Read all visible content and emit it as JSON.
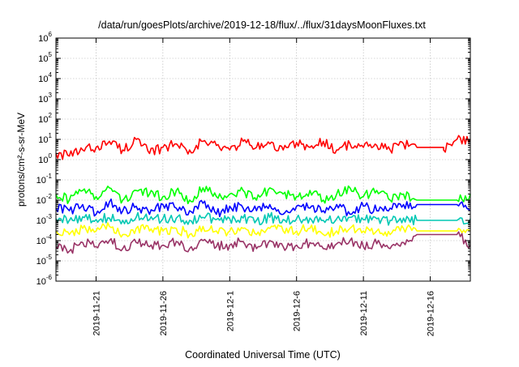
{
  "chart_data": {
    "type": "line",
    "title": "/data/run/goesPlots/archive/2019-12-18/flux/../flux/31daysMoonFluxes.txt",
    "xlabel": "Coordinated Universal Time (UTC)",
    "ylabel": "protons/cm²-s-sr-MeV",
    "y_scale": "log",
    "ylim": [
      1e-06,
      1000000.0
    ],
    "y_ticks": [
      {
        "value": 1e-06,
        "base": "10",
        "exp": "-6"
      },
      {
        "value": 1e-05,
        "base": "10",
        "exp": "-5"
      },
      {
        "value": 0.0001,
        "base": "10",
        "exp": "-4"
      },
      {
        "value": 0.001,
        "base": "10",
        "exp": "-3"
      },
      {
        "value": 0.01,
        "base": "10",
        "exp": "-2"
      },
      {
        "value": 0.1,
        "base": "10",
        "exp": "-1"
      },
      {
        "value": 1,
        "base": "10",
        "exp": "0"
      },
      {
        "value": 10,
        "base": "10",
        "exp": "1"
      },
      {
        "value": 100,
        "base": "10",
        "exp": "2"
      },
      {
        "value": 1000,
        "base": "10",
        "exp": "3"
      },
      {
        "value": 10000,
        "base": "10",
        "exp": "4"
      },
      {
        "value": 100000,
        "base": "10",
        "exp": "5"
      },
      {
        "value": 1000000,
        "base": "10",
        "exp": "6"
      }
    ],
    "x_range": [
      "2019-11-18",
      "2019-12-19"
    ],
    "x_ticks": [
      "2019-11-21",
      "2019-11-26",
      "2019-12-1",
      "2019-12-6",
      "2019-12-11",
      "2019-12-16"
    ],
    "grid": true,
    "series": [
      {
        "color": "#ff0000",
        "gap_from": "2019-12-15",
        "gap_to": "2019-12-17",
        "x": [
          "2019-11-18",
          "2019-11-19",
          "2019-11-20",
          "2019-11-21",
          "2019-11-22",
          "2019-11-23",
          "2019-11-24",
          "2019-11-25",
          "2019-11-26",
          "2019-11-27",
          "2019-11-28",
          "2019-11-29",
          "2019-11-30",
          "2019-12-01",
          "2019-12-02",
          "2019-12-03",
          "2019-12-04",
          "2019-12-05",
          "2019-12-06",
          "2019-12-07",
          "2019-12-08",
          "2019-12-09",
          "2019-12-10",
          "2019-12-11",
          "2019-12-12",
          "2019-12-13",
          "2019-12-14",
          "2019-12-15",
          "2019-12-17",
          "2019-12-18",
          "2019-12-19"
        ],
        "values": [
          2,
          1.5,
          3,
          4,
          8,
          3,
          10,
          2,
          4,
          6,
          3,
          8,
          5,
          3,
          8,
          4,
          6,
          3,
          7,
          4,
          8,
          3,
          6,
          4,
          5,
          3,
          6,
          4,
          3,
          10,
          10
        ]
      },
      {
        "color": "#00ff00",
        "gap_from": "2019-12-15",
        "gap_to": "2019-12-18",
        "x": [
          "2019-11-18",
          "2019-11-19",
          "2019-11-20",
          "2019-11-21",
          "2019-11-22",
          "2019-11-23",
          "2019-11-24",
          "2019-11-25",
          "2019-11-26",
          "2019-11-27",
          "2019-11-28",
          "2019-11-29",
          "2019-11-30",
          "2019-12-01",
          "2019-12-02",
          "2019-12-03",
          "2019-12-04",
          "2019-12-05",
          "2019-12-06",
          "2019-12-07",
          "2019-12-08",
          "2019-12-09",
          "2019-12-10",
          "2019-12-11",
          "2019-12-12",
          "2019-12-13",
          "2019-12-14",
          "2019-12-15",
          "2019-12-18",
          "2019-12-19"
        ],
        "values": [
          0.02,
          0.01,
          0.03,
          0.015,
          0.04,
          0.01,
          0.03,
          0.02,
          0.015,
          0.03,
          0.01,
          0.04,
          0.015,
          0.02,
          0.03,
          0.01,
          0.04,
          0.02,
          0.015,
          0.03,
          0.01,
          0.02,
          0.04,
          0.015,
          0.03,
          0.01,
          0.02,
          0.01,
          0.01,
          0.02
        ]
      },
      {
        "color": "#0000ff",
        "gap_from": "2019-12-15",
        "gap_to": "2019-12-18",
        "x": [
          "2019-11-18",
          "2019-11-19",
          "2019-11-20",
          "2019-11-21",
          "2019-11-22",
          "2019-11-23",
          "2019-11-24",
          "2019-11-25",
          "2019-11-26",
          "2019-11-27",
          "2019-11-28",
          "2019-11-29",
          "2019-11-30",
          "2019-12-01",
          "2019-12-02",
          "2019-12-03",
          "2019-12-04",
          "2019-12-05",
          "2019-12-06",
          "2019-12-07",
          "2019-12-08",
          "2019-12-09",
          "2019-12-10",
          "2019-12-11",
          "2019-12-12",
          "2019-12-13",
          "2019-12-14",
          "2019-12-15",
          "2019-12-18",
          "2019-12-19"
        ],
        "values": [
          0.004,
          0.003,
          0.006,
          0.002,
          0.008,
          0.003,
          0.005,
          0.002,
          0.006,
          0.004,
          0.003,
          0.007,
          0.002,
          0.005,
          0.004,
          0.003,
          0.006,
          0.002,
          0.005,
          0.004,
          0.003,
          0.006,
          0.002,
          0.005,
          0.003,
          0.004,
          0.006,
          0.006,
          0.006,
          0.003
        ]
      },
      {
        "color": "#00c8b4",
        "gap_from": "2019-12-15",
        "gap_to": "2019-12-18",
        "x": [
          "2019-11-18",
          "2019-11-19",
          "2019-11-20",
          "2019-11-21",
          "2019-11-22",
          "2019-11-23",
          "2019-11-24",
          "2019-11-25",
          "2019-11-26",
          "2019-11-27",
          "2019-11-28",
          "2019-11-29",
          "2019-11-30",
          "2019-12-01",
          "2019-12-02",
          "2019-12-03",
          "2019-12-04",
          "2019-12-05",
          "2019-12-06",
          "2019-12-07",
          "2019-12-08",
          "2019-12-09",
          "2019-12-10",
          "2019-12-11",
          "2019-12-12",
          "2019-12-13",
          "2019-12-14",
          "2019-12-15",
          "2019-12-18",
          "2019-12-19"
        ],
        "values": [
          0.0012,
          0.001,
          0.0015,
          0.0011,
          0.0013,
          0.001,
          0.0014,
          0.0011,
          0.0012,
          0.0013,
          0.001,
          0.0014,
          0.0011,
          0.0012,
          0.0013,
          0.001,
          0.0014,
          0.0011,
          0.0012,
          0.0013,
          0.001,
          0.0012,
          0.0014,
          0.0011,
          0.0012,
          0.001,
          0.0013,
          0.001,
          0.001,
          0.0012
        ]
      },
      {
        "color": "#ffff00",
        "gap_from": "2019-12-15",
        "gap_to": "2019-12-18",
        "x": [
          "2019-11-18",
          "2019-11-19",
          "2019-11-20",
          "2019-11-21",
          "2019-11-22",
          "2019-11-23",
          "2019-11-24",
          "2019-11-25",
          "2019-11-26",
          "2019-11-27",
          "2019-11-28",
          "2019-11-29",
          "2019-11-30",
          "2019-12-01",
          "2019-12-02",
          "2019-12-03",
          "2019-12-04",
          "2019-12-05",
          "2019-12-06",
          "2019-12-07",
          "2019-12-08",
          "2019-12-09",
          "2019-12-10",
          "2019-12-11",
          "2019-12-12",
          "2019-12-13",
          "2019-12-14",
          "2019-12-15",
          "2019-12-18",
          "2019-12-19"
        ],
        "values": [
          0.0003,
          0.0002,
          0.0004,
          0.0003,
          0.0005,
          0.0002,
          0.0004,
          0.0003,
          0.0003,
          0.0004,
          0.0002,
          0.0005,
          0.0003,
          0.0003,
          0.0004,
          0.0002,
          0.0004,
          0.0003,
          0.0003,
          0.0004,
          0.0002,
          0.0003,
          0.0004,
          0.0003,
          0.0003,
          0.0002,
          0.0004,
          0.0003,
          0.0003,
          0.0003
        ]
      },
      {
        "color": "#993366",
        "gap_from": "2019-12-15",
        "gap_to": "2019-12-18",
        "x": [
          "2019-11-18",
          "2019-11-19",
          "2019-11-20",
          "2019-11-21",
          "2019-11-22",
          "2019-11-23",
          "2019-11-24",
          "2019-11-25",
          "2019-11-26",
          "2019-11-27",
          "2019-11-28",
          "2019-11-29",
          "2019-11-30",
          "2019-12-01",
          "2019-12-02",
          "2019-12-03",
          "2019-12-04",
          "2019-12-05",
          "2019-12-06",
          "2019-12-07",
          "2019-12-08",
          "2019-12-09",
          "2019-12-10",
          "2019-12-11",
          "2019-12-12",
          "2019-12-13",
          "2019-12-14",
          "2019-12-15",
          "2019-12-18",
          "2019-12-19"
        ],
        "values": [
          5e-05,
          3e-05,
          8e-05,
          5e-05,
          0.0001,
          4e-05,
          8e-05,
          5e-05,
          6e-05,
          9e-05,
          4e-05,
          0.0001,
          5e-05,
          6e-05,
          9e-05,
          4e-05,
          0.0001,
          5e-05,
          6e-05,
          8e-05,
          4e-05,
          7e-05,
          0.0001,
          5e-05,
          7e-05,
          4e-05,
          8e-05,
          0.0002,
          0.0002,
          6e-05
        ]
      }
    ]
  }
}
